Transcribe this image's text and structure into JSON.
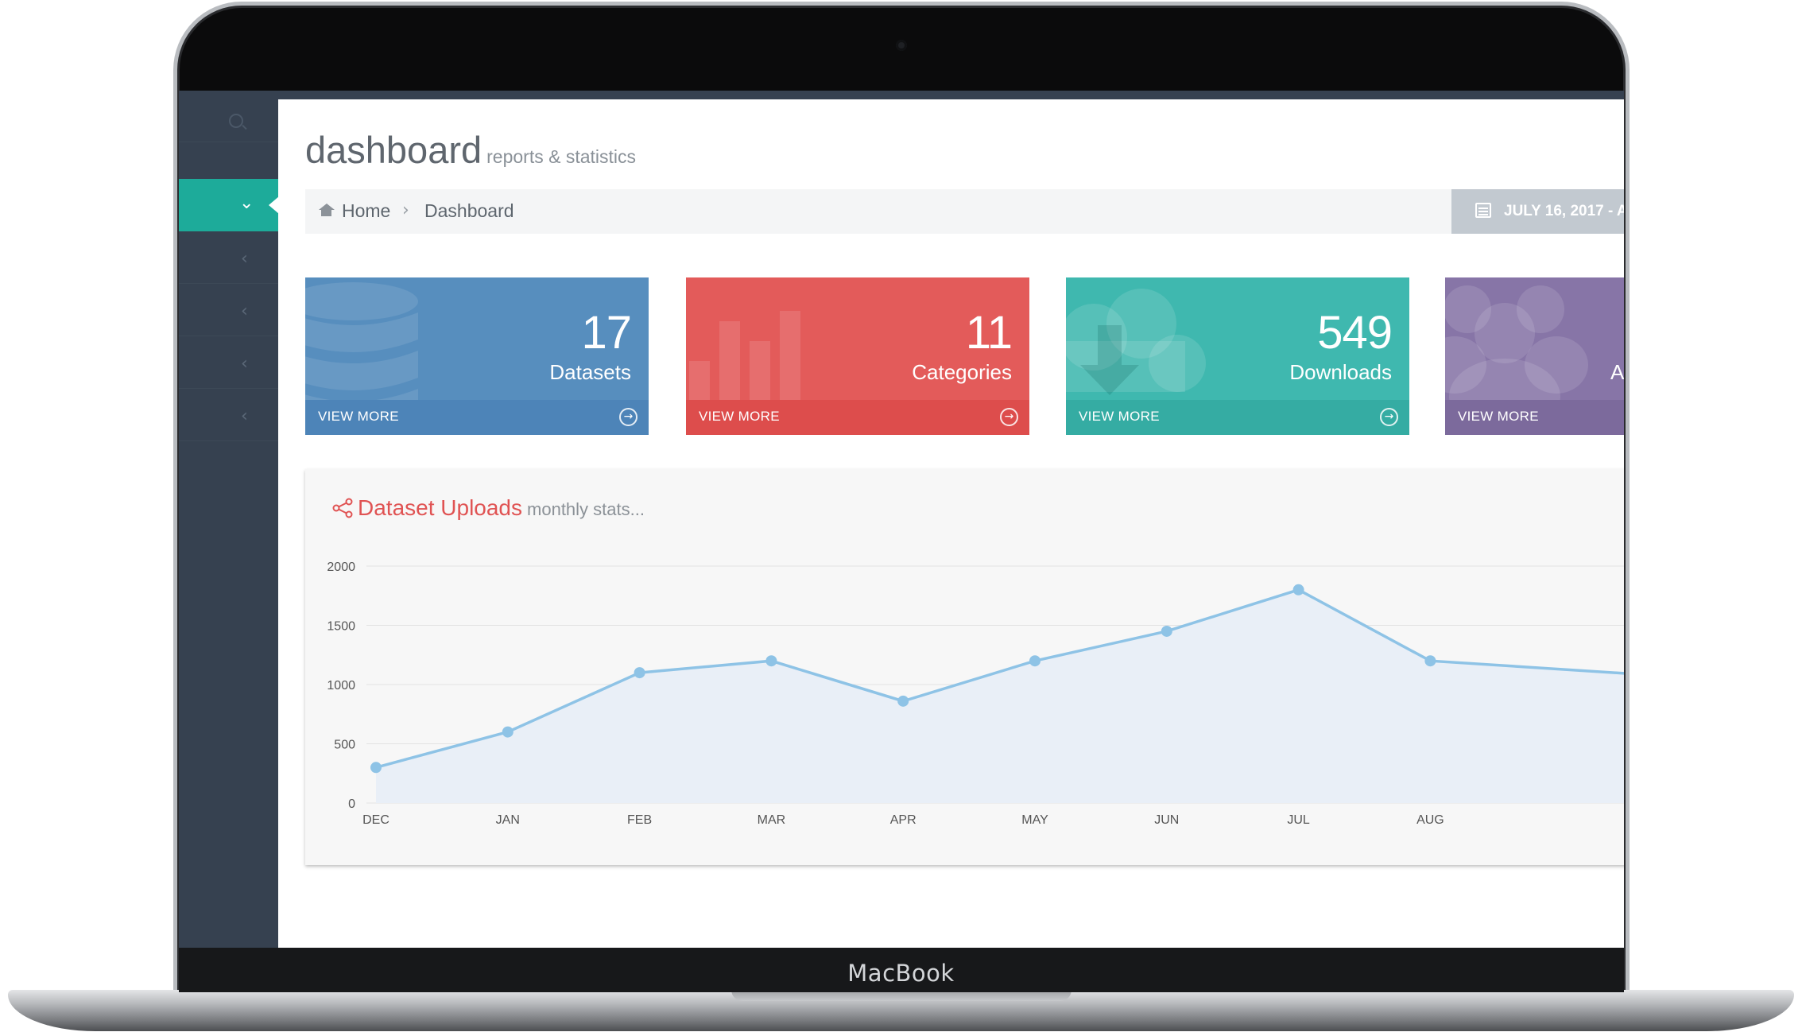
{
  "device": {
    "brand": "MacBook"
  },
  "header": {
    "title": "dashboard",
    "subtitle": "reports & statistics"
  },
  "breadcrumb": {
    "home": "Home",
    "current": "Dashboard"
  },
  "date_range": {
    "label": "JULY 16, 2017 - A"
  },
  "tiles": [
    {
      "number": "17",
      "label": "Datasets",
      "more": "VIEW MORE",
      "color": "#578ebe",
      "footer_color": "#4d84b8",
      "icon": "database-icon"
    },
    {
      "number": "11",
      "label": "Categories",
      "more": "VIEW MORE",
      "color": "#e35b5a",
      "footer_color": "#dd4d4c",
      "icon": "bar-chart-icon"
    },
    {
      "number": "549",
      "label": "Downloads",
      "more": "VIEW MORE",
      "color": "#3fb8af",
      "footer_color": "#35aca3",
      "icon": "cloud-download-icon"
    },
    {
      "number": "",
      "label": "A",
      "more": "VIEW MORE",
      "color": "#8775a7",
      "footer_color": "#7c6a9c",
      "icon": "users-icon"
    }
  ],
  "chart_panel": {
    "title": "Dataset Uploads",
    "subtitle": "monthly stats..."
  },
  "chart_data": {
    "type": "area",
    "title": "Dataset Uploads",
    "categories": [
      "DEC",
      "JAN",
      "FEB",
      "MAR",
      "APR",
      "MAY",
      "JUN",
      "JUL",
      "AUG"
    ],
    "values": [
      300,
      600,
      1100,
      1200,
      860,
      1200,
      1450,
      1800,
      1200
    ],
    "yticks": [
      0,
      500,
      1000,
      1500,
      2000
    ],
    "ylim": [
      0,
      2000
    ],
    "grid": true,
    "line_color": "#8ec3e6",
    "fill_color": "#e9eff7"
  }
}
